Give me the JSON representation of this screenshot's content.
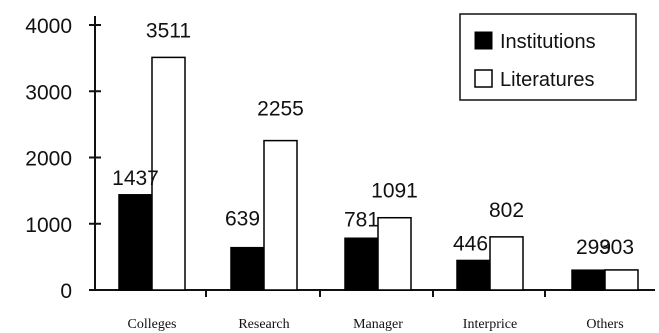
{
  "chart_data": {
    "type": "bar",
    "categories": [
      "Colleges",
      "Research",
      "Manager",
      "Interprice",
      "Others"
    ],
    "series": [
      {
        "name": "Institutions",
        "values": [
          1437,
          639,
          781,
          446,
          299
        ],
        "labels": [
          "1437",
          "639",
          "781",
          "446",
          "299"
        ],
        "color": "#000000"
      },
      {
        "name": "Literatures",
        "values": [
          3511,
          2255,
          1091,
          802,
          303
        ],
        "labels": [
          "3511",
          "2255",
          "1091",
          "802",
          "303"
        ],
        "color": "#ffffff"
      }
    ],
    "yticks": [
      0,
      1000,
      2000,
      3000,
      4000
    ],
    "ytick_labels": [
      "0",
      "1000",
      "2000",
      "3000",
      "4000"
    ],
    "ylim": [
      0,
      4000
    ],
    "legend_position": "top-right",
    "grid": false
  }
}
